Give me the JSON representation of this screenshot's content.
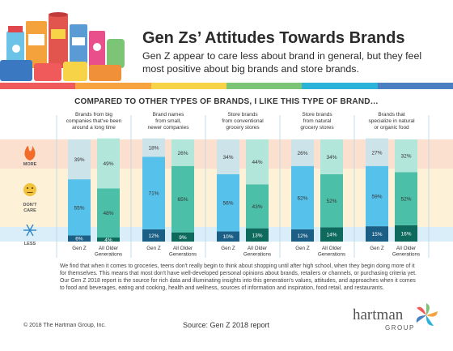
{
  "title": "Gen Zs’ Attitudes Towards Brands",
  "subtitle": "Gen Z appear to care less about brand in general, but they feel most positive about big brands and store brands.",
  "chart_data": {
    "type": "bar",
    "stacked": true,
    "heading": "COMPARED TO OTHER TYPES OF BRANDS, I LIKE THIS TYPE OF BRAND…",
    "categories": [
      "Brands from big companies that've been around a long time",
      "Brand names from small, newer companies",
      "Store brands from conventional grocery stores",
      "Store brands from natural grocery stores",
      "Brands that specialize in natural or organic food"
    ],
    "category_lines": [
      [
        "Brands from big",
        "companies that've been",
        "around a long time"
      ],
      [
        "Brand names",
        "from small,",
        "newer companies"
      ],
      [
        "Store brands",
        "from conventional",
        "grocery stores"
      ],
      [
        "Store brands",
        "from natural",
        "grocery stores"
      ],
      [
        "Brands that",
        "specialize in natural",
        "or organic food"
      ]
    ],
    "groups": [
      "Gen Z",
      "All Older Generations"
    ],
    "group_lines": [
      [
        "Gen Z"
      ],
      [
        "All Older",
        "Generations"
      ]
    ],
    "levels": [
      "MORE",
      "DON'T CARE",
      "LESS"
    ],
    "level_lines": [
      [
        "MORE"
      ],
      [
        "DON'T",
        "CARE"
      ],
      [
        "LESS"
      ]
    ],
    "series": [
      {
        "name": "LESS",
        "genz": [
          6,
          12,
          10,
          12,
          15
        ],
        "older": [
          4,
          9,
          13,
          14,
          16
        ]
      },
      {
        "name": "DON'T CARE",
        "genz": [
          55,
          71,
          56,
          62,
          59
        ],
        "older": [
          48,
          65,
          43,
          52,
          52
        ]
      },
      {
        "name": "MORE",
        "genz": [
          39,
          18,
          34,
          26,
          27
        ],
        "older": [
          49,
          26,
          44,
          34,
          32
        ]
      }
    ],
    "value_suffix": "%",
    "ylim": [
      0,
      100
    ],
    "colors": {
      "genz": {
        "LESS": "#1c5f86",
        "DON'T CARE": "#56c1ea",
        "MORE": "#cde3ea"
      },
      "older": {
        "LESS": "#0f6a5e",
        "DON'T CARE": "#4bbfa8",
        "MORE": "#b2e6da"
      },
      "band_more": "#fbe0cf",
      "band_care": "#fdf1d7",
      "band_less": "#d9eef8",
      "divider": "#b7d5e6"
    },
    "icons": [
      "fire-icon",
      "neutral-face-icon",
      "snowflake-icon"
    ]
  },
  "footnote": "We find that when it comes to groceries, teens don't really begin to think about shopping until after high school, when they begin doing more of it for themselves. This means that most don't have well-developed personal opinions about brands, retailers or channels, or purchasing criteria yet. Our Gen Z 2018 report is the source for rich data and illuminating insights into this generation's values, attitudes, and approaches when it comes to food and beverages, eating and cooking, health and wellness, sources of information and inspiration, food retail, and restaurants.",
  "copyright": "© 2018 The Hartman Group, Inc.",
  "source": "Source: Gen Z 2018 report",
  "logo": {
    "name": "hartman",
    "tagline": "GROUP"
  },
  "stripe_colors": [
    "#f05a5b",
    "#f7a440",
    "#f7d348",
    "#7cc576",
    "#2bb3d9",
    "#4a7fc1"
  ]
}
